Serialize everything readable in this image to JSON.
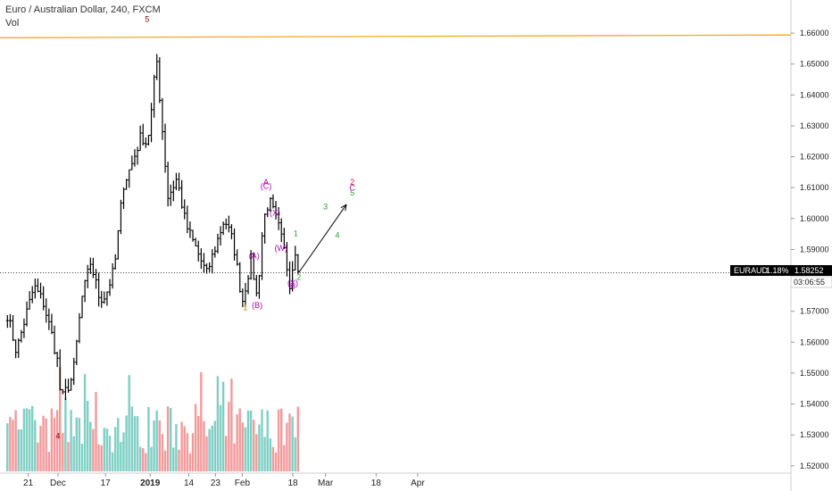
{
  "header": {
    "title": "Euro / Australian Dollar, 240, FXCM",
    "volume_label": "Vol"
  },
  "price_tag": {
    "symbol": "EURAUD",
    "change": "1.18%",
    "price": "1.58252",
    "countdown": "03:06:55",
    "color": "#000000"
  },
  "colors": {
    "candles": "#000000",
    "volume_up": "#7ecfc4",
    "volume_down": "#f29a9a",
    "trendline": "#f5a623",
    "grid_axis": "#cccccc"
  },
  "chart_data": {
    "type": "line",
    "title": "Euro / Australian Dollar, 240, FXCM",
    "x_labels": [
      "21",
      "Dec",
      "17",
      "2019",
      "14",
      "23",
      "Feb",
      "18",
      "Mar",
      "18",
      "Apr"
    ],
    "y_ticks": [
      "1.66000",
      "1.65000",
      "1.64000",
      "1.63000",
      "1.62000",
      "1.61000",
      "1.60000",
      "1.59000",
      "1.58000",
      "1.57000",
      "1.56000",
      "1.55000",
      "1.54000",
      "1.53000",
      "1.52000"
    ],
    "ylim": [
      1.5185,
      1.6635
    ],
    "price_path": [
      {
        "x": "Nov 14",
        "y": 1.569
      },
      {
        "x": "Nov 17",
        "y": 1.557
      },
      {
        "x": "Nov 20",
        "y": 1.568
      },
      {
        "x": "Nov 23",
        "y": 1.578
      },
      {
        "x": "Nov 26",
        "y": 1.573
      },
      {
        "x": "Nov 29",
        "y": 1.562
      },
      {
        "x": "Dec 1",
        "y": 1.553
      },
      {
        "x": "Dec 2",
        "y": 1.541
      },
      {
        "x": "Dec 4",
        "y": 1.545
      },
      {
        "x": "Dec 6",
        "y": 1.549
      },
      {
        "x": "Dec 9",
        "y": 1.574
      },
      {
        "x": "Dec 12",
        "y": 1.586
      },
      {
        "x": "Dec 15",
        "y": 1.574
      },
      {
        "x": "Dec 17",
        "y": 1.575
      },
      {
        "x": "Dec 20",
        "y": 1.584
      },
      {
        "x": "Dec 23",
        "y": 1.611
      },
      {
        "x": "Dec 26",
        "y": 1.618
      },
      {
        "x": "Dec 29",
        "y": 1.627
      },
      {
        "x": "Dec 31",
        "y": 1.624
      },
      {
        "x": "Jan 2",
        "y": 1.639
      },
      {
        "x": "Jan 3",
        "y": 1.654
      },
      {
        "x": "Jan 5",
        "y": 1.63
      },
      {
        "x": "Jan 7",
        "y": 1.607
      },
      {
        "x": "Jan 10",
        "y": 1.613
      },
      {
        "x": "Jan 13",
        "y": 1.598
      },
      {
        "x": "Jan 17",
        "y": 1.589
      },
      {
        "x": "Jan 20",
        "y": 1.582
      },
      {
        "x": "Jan 23",
        "y": 1.591
      },
      {
        "x": "Jan 26",
        "y": 1.6
      },
      {
        "x": "Jan 29",
        "y": 1.592
      },
      {
        "x": "Feb 1",
        "y": 1.573
      },
      {
        "x": "Feb 4",
        "y": 1.587
      },
      {
        "x": "Feb 6",
        "y": 1.574
      },
      {
        "x": "Feb 8",
        "y": 1.599
      },
      {
        "x": "Feb 10",
        "y": 1.606
      },
      {
        "x": "Feb 13",
        "y": 1.598
      },
      {
        "x": "Feb 15",
        "y": 1.59
      },
      {
        "x": "Feb 17",
        "y": 1.579
      },
      {
        "x": "Feb 19",
        "y": 1.591
      },
      {
        "x": "Feb 20",
        "y": 1.583
      }
    ],
    "trendline": [
      {
        "x": "Nov 14",
        "y": 1.6585
      },
      {
        "x": "Apr 1",
        "y": 1.6594
      }
    ],
    "projection": [
      {
        "x": "Feb 20",
        "y": 1.5825
      },
      {
        "x": "Mar 8",
        "y": 1.6045
      }
    ],
    "wave_labels": [
      {
        "text": "5",
        "x": "Dec 31",
        "y": 1.6637,
        "color": "#8b0000"
      },
      {
        "text": "4",
        "x": "Dec 1",
        "y": 1.5288,
        "color": "#8b0000"
      },
      {
        "text": "1",
        "x": "Feb 2",
        "y": 1.5704,
        "color": "#b8860b"
      },
      {
        "text": "(A)",
        "x": "Feb 5",
        "y": 1.5871,
        "color": "#b000b0"
      },
      {
        "text": "(B)",
        "x": "Feb 6",
        "y": 1.571,
        "color": "#b000b0"
      },
      {
        "text": "A",
        "x": "Feb 9",
        "y": 1.611,
        "color": "#b000b0"
      },
      {
        "text": "(C)",
        "x": "Feb 9",
        "y": 1.6097,
        "color": "#b000b0"
      },
      {
        "text": "(X)",
        "x": "Feb 12",
        "y": 1.601,
        "color": "#b000b0"
      },
      {
        "text": "(W)",
        "x": "Feb 14",
        "y": 1.5895,
        "color": "#b000b0"
      },
      {
        "text": "(Y)",
        "x": "Feb 18",
        "y": 1.5783,
        "color": "#b000b0"
      },
      {
        "text": "B",
        "x": "Feb 18",
        "y": 1.5773,
        "color": "#b000b0"
      },
      {
        "text": "1",
        "x": "Feb 19",
        "y": 1.5943,
        "color": "#2ca02c"
      },
      {
        "text": "2",
        "x": "Feb 20",
        "y": 1.5802,
        "color": "#2ca02c"
      },
      {
        "text": "3",
        "x": "Mar 1",
        "y": 1.603,
        "color": "#2ca02c"
      },
      {
        "text": "4",
        "x": "Mar 5",
        "y": 1.5938,
        "color": "#2ca02c"
      },
      {
        "text": "2",
        "x": "Mar 10",
        "y": 1.611,
        "color": "#d62728"
      },
      {
        "text": "C",
        "x": "Mar 10",
        "y": 1.609,
        "color": "#b000b0"
      },
      {
        "text": "5",
        "x": "Mar 10",
        "y": 1.6075,
        "color": "#2ca02c"
      }
    ]
  }
}
